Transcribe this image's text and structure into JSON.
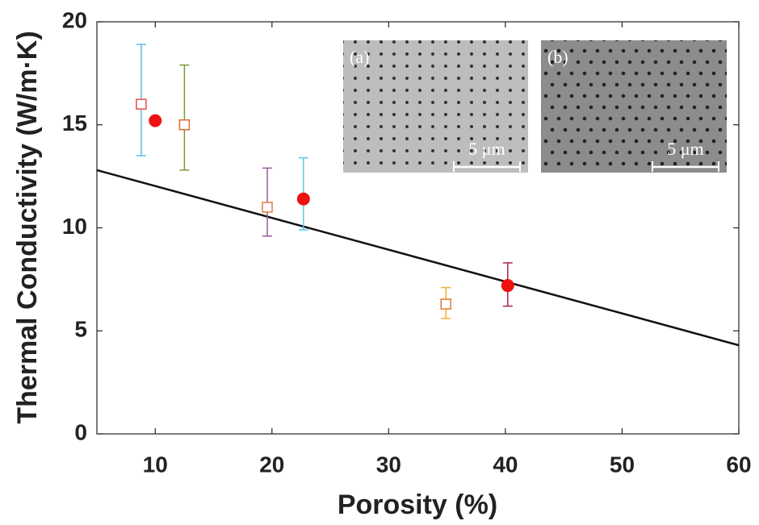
{
  "chart_data": {
    "type": "scatter",
    "x_label": "Porosity (%)",
    "y_label": "Thermal Conductivity (W/m·K)",
    "xlim": [
      5,
      60
    ],
    "ylim": [
      0,
      20
    ],
    "xticks": [
      10,
      20,
      30,
      40,
      50,
      60
    ],
    "yticks": [
      0,
      5,
      10,
      15,
      20
    ],
    "series": [
      {
        "marker": "square",
        "x": [
          8.8,
          12.5,
          19.6,
          34.9
        ],
        "values": [
          16,
          15,
          11,
          6.3
        ],
        "yerr_minus": [
          2.5,
          2.2,
          1.4,
          0.7
        ],
        "yerr_plus": [
          2.9,
          2.9,
          1.9,
          0.8
        ],
        "colors": [
          "#e0504a",
          "#e06a30",
          "#e07a40",
          "#e07a30"
        ],
        "errorbar_colors": [
          "#5bc0e0",
          "#7a9a30",
          "#9a5aa0",
          "#f0b030"
        ]
      },
      {
        "marker": "circle",
        "x": [
          10,
          22.7,
          40.2
        ],
        "values": [
          15.2,
          11.4,
          7.2
        ],
        "yerr_minus": [
          null,
          1.5,
          1.0
        ],
        "yerr_plus": [
          null,
          2.0,
          1.1
        ],
        "colors": [
          "#ee1111",
          "#ee1111",
          "#ee1111"
        ],
        "errorbar_colors": [
          null,
          "#5bc8e8",
          "#b02040"
        ]
      }
    ],
    "fit": {
      "x": [
        5,
        60
      ],
      "y": [
        12.8,
        4.3
      ],
      "color": "#111111"
    },
    "insets": [
      {
        "label": "(a)",
        "scale_label": "5 μm"
      },
      {
        "label": "(b)",
        "scale_label": "5 μm"
      }
    ]
  }
}
